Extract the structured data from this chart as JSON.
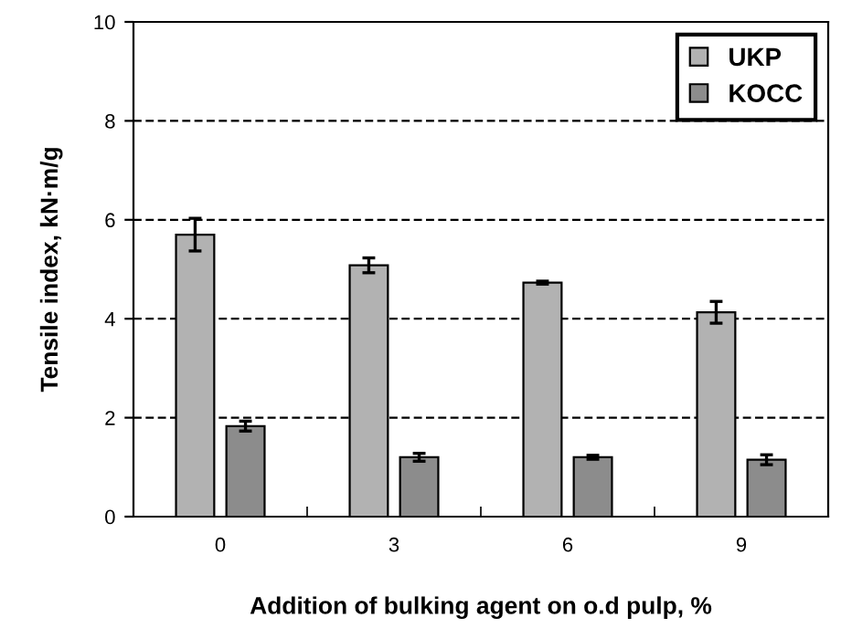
{
  "chart_data": {
    "type": "bar",
    "xlabel": "Addition of bulking agent on o.d pulp, %",
    "ylabel": "Tensile index, kN·m/g",
    "categories": [
      "0",
      "3",
      "6",
      "9"
    ],
    "series": [
      {
        "name": "UKP",
        "color": "#b2b2b2",
        "values": [
          5.7,
          5.08,
          4.73,
          4.13
        ],
        "errors": [
          0.33,
          0.15,
          0.03,
          0.22
        ]
      },
      {
        "name": "KOCC",
        "color": "#8c8c8c",
        "values": [
          1.83,
          1.2,
          1.2,
          1.15
        ],
        "errors": [
          0.1,
          0.08,
          0.04,
          0.1
        ]
      }
    ],
    "ylim": [
      0,
      10
    ],
    "yticks": [
      0,
      2,
      4,
      6,
      8,
      10
    ],
    "grid": "y",
    "legend": "top right"
  }
}
